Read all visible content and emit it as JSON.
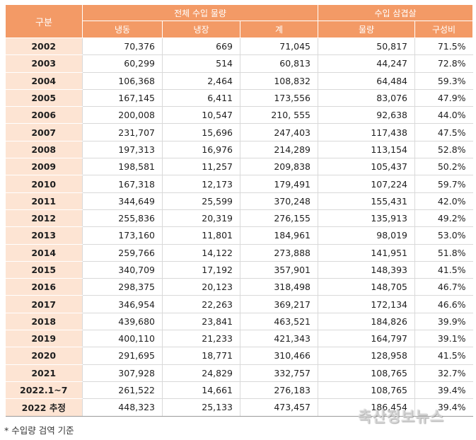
{
  "header": {
    "category": "구분",
    "group_total": "전체 수입 물량",
    "group_pork_belly": "수입 삼겹살",
    "col_frozen": "냉동",
    "col_chilled": "냉장",
    "col_total": "계",
    "col_volume": "물량",
    "col_share": "구성비"
  },
  "rows": [
    [
      "2002",
      "70,376",
      "669",
      "71,045",
      "50,817",
      "71.5%"
    ],
    [
      "2003",
      "60,299",
      "514",
      "60,813",
      "44,247",
      "72.8%"
    ],
    [
      "2004",
      "106,368",
      "2,464",
      "108,832",
      "64,484",
      "59.3%"
    ],
    [
      "2005",
      "167,145",
      "6,411",
      "173,556",
      "83,076",
      "47.9%"
    ],
    [
      "2006",
      "200,008",
      "10,547",
      "210, 555",
      "92,638",
      "44.0%"
    ],
    [
      "2007",
      "231,707",
      "15,696",
      "247,403",
      "117,438",
      "47.5%"
    ],
    [
      "2008",
      "197,313",
      "16,976",
      "214,289",
      "113,154",
      "52.8%"
    ],
    [
      "2009",
      "198,581",
      "11,257",
      "209,838",
      "105,437",
      "50.2%"
    ],
    [
      "2010",
      "167,318",
      "12,173",
      "179,491",
      "107,224",
      "59.7%"
    ],
    [
      "2011",
      "344,649",
      "25,599",
      "370,248",
      "155,431",
      "42.0%"
    ],
    [
      "2012",
      "255,836",
      "20,319",
      "276,155",
      "135,913",
      "49.2%"
    ],
    [
      "2013",
      "173,160",
      "11,801",
      "184,961",
      "98,019",
      "53.0%"
    ],
    [
      "2014",
      "259,766",
      "14,122",
      "273,888",
      "141,951",
      "51.8%"
    ],
    [
      "2015",
      "340,709",
      "17,192",
      "357,901",
      "148,393",
      "41.5%"
    ],
    [
      "2016",
      "298,375",
      "20,123",
      "318,498",
      "148,705",
      "46.7%"
    ],
    [
      "2017",
      "346,954",
      "22,263",
      "369,217",
      "172,134",
      "46.6%"
    ],
    [
      "2018",
      "439,680",
      "23,841",
      "463,521",
      "184,826",
      "39.9%"
    ],
    [
      "2019",
      "400,110",
      "21,233",
      "421,343",
      "164,797",
      "39.1%"
    ],
    [
      "2020",
      "291,695",
      "18,771",
      "310,466",
      "128,958",
      "41.5%"
    ],
    [
      "2021",
      "307,928",
      "24,829",
      "332,757",
      "108,765",
      "32.7%"
    ],
    [
      "2022.1~7",
      "261,522",
      "14,661",
      "276,183",
      "108,765",
      "39.4%"
    ],
    [
      "2022 추정",
      "448,323",
      "25,133",
      "473,457",
      "186,454",
      "39.4%"
    ]
  ],
  "footnote": "* 수입량 검역 기준",
  "watermark": "축산정보뉴스"
}
